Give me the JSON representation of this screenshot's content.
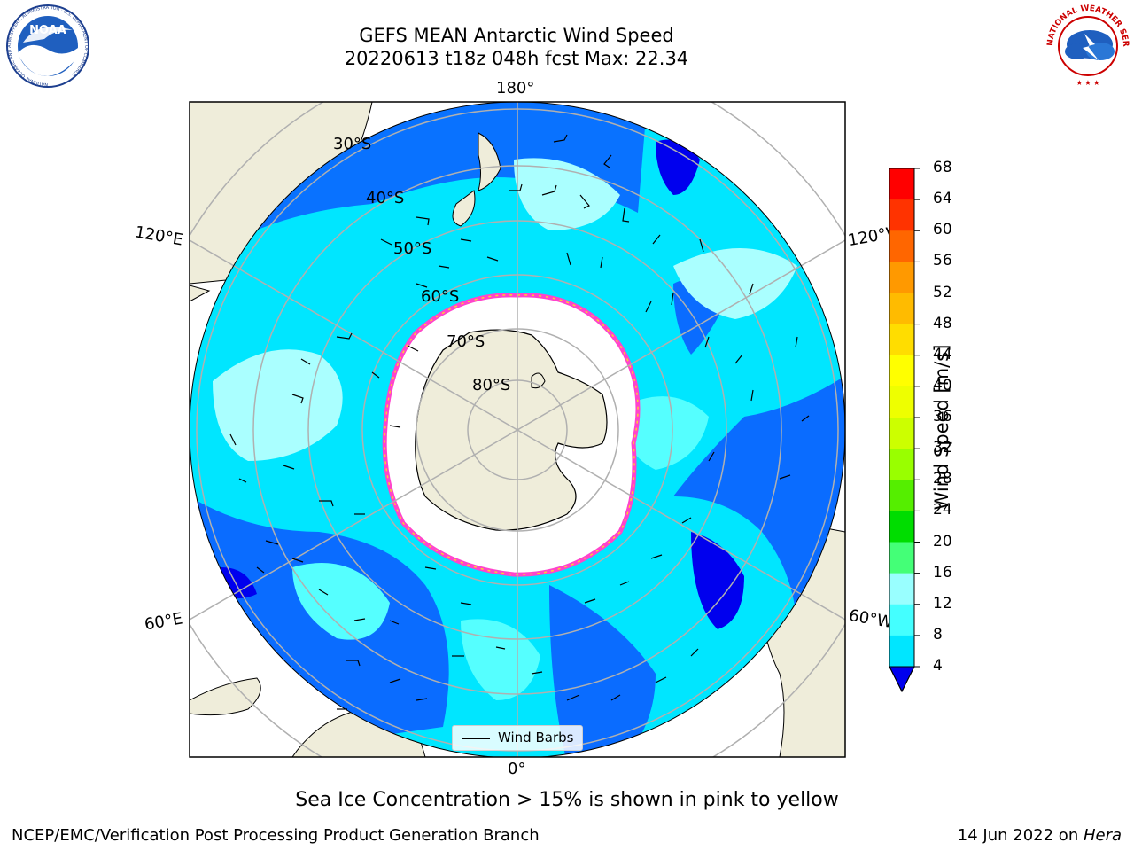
{
  "header": {
    "title_line1": "GEFS MEAN Antarctic Wind Speed",
    "title_line2": "20220613 t18z 048h fcst   Max: 22.34"
  },
  "logos": {
    "left": "NOAA",
    "left_ring_text": "NATIONAL OCEANIC AND ATMOSPHERIC ADMINISTRATION · U.S. DEPARTMENT OF COMMERCE",
    "right_ring_text": "NATIONAL WEATHER SERVICE"
  },
  "map": {
    "projection": "south-polar-stereographic",
    "longitude_labels": [
      "180°",
      "120°E",
      "120°W",
      "60°E",
      "60°W",
      "0°"
    ],
    "latitude_labels": [
      "30°S",
      "40°S",
      "50°S",
      "60°S",
      "70°S",
      "80°S"
    ],
    "legend_label": "Wind Barbs"
  },
  "colorbar": {
    "title": "Wind Speed [m/s]",
    "ticks": [
      "68",
      "64",
      "60",
      "56",
      "52",
      "48",
      "44",
      "40",
      "36",
      "32",
      "28",
      "24",
      "20",
      "16",
      "12",
      "8",
      "4"
    ],
    "colors": [
      "#ff0000",
      "#ff3300",
      "#ff6600",
      "#ff9900",
      "#ffbb00",
      "#ffdd00",
      "#ffff00",
      "#eeff00",
      "#ccff00",
      "#99ff00",
      "#55ee00",
      "#00dd00",
      "#44ff77",
      "#99ffff",
      "#44ffff",
      "#00e6ff",
      "#0088ff"
    ],
    "extend_color": "#0000ee"
  },
  "palette": {
    "land": "#efedda",
    "ice": "#ffffff",
    "ice_edge": [
      "#ff44cc",
      "#ffcc33"
    ],
    "wind_4_8": "#0a6cff",
    "wind_8_12": "#00e6ff",
    "wind_12_16": "#55ffff",
    "wind_16_20": "#aaffff",
    "wind_lt_4": "#0000ee"
  },
  "caption": "Sea Ice Concentration > 15% is shown in pink to yellow",
  "footer": {
    "left": "NCEP/EMC/Verification Post Processing Product Generation Branch",
    "right_prefix": "14 Jun 2022 on ",
    "right_machine": "Hera"
  }
}
